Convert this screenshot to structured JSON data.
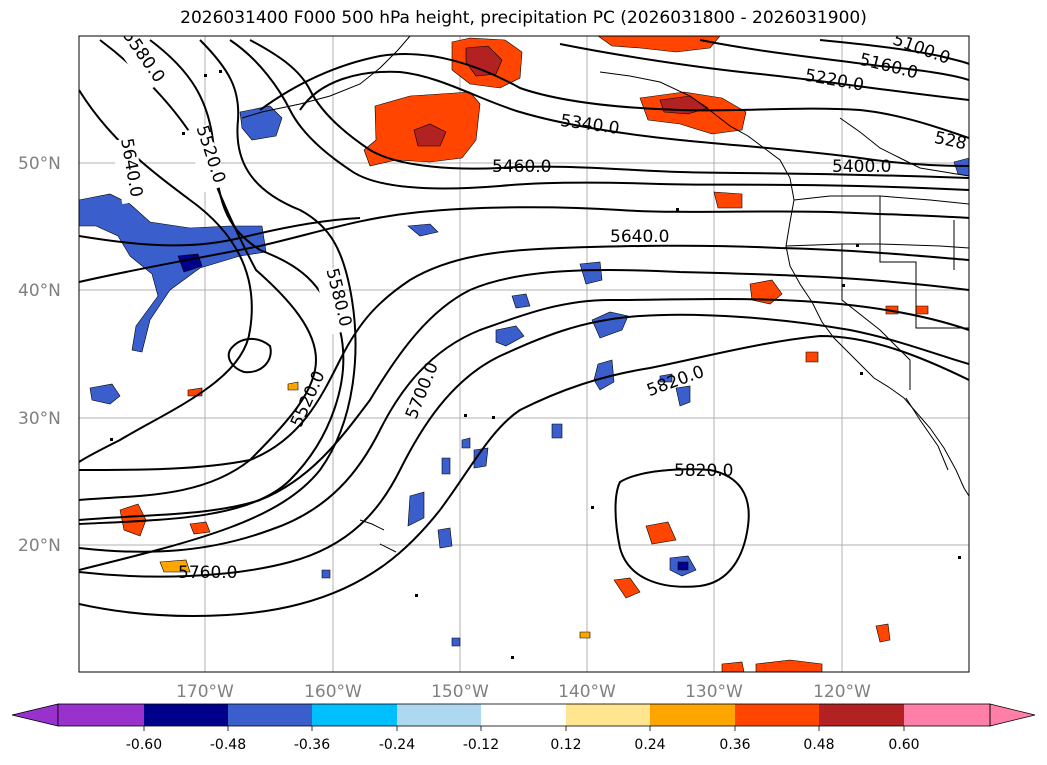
{
  "title": "2026031400 F000 500 hPa height, precipitation PC (2026031800 - 2026031900)",
  "latitude_labels": [
    "50°N",
    "40°N",
    "30°N",
    "20°N"
  ],
  "longitude_labels": [
    "170°W",
    "160°W",
    "150°W",
    "140°W",
    "130°W",
    "120°W"
  ],
  "contour_labels": [
    "5580.0",
    "5640.0",
    "5520.0",
    "5340.0",
    "5460.0",
    "5220.0",
    "5160.0",
    "5100.0",
    "528",
    "5400.0",
    "5640.0",
    "5580.0",
    "5520.0",
    "5700.0",
    "5820.0",
    "5820.0",
    "5760.0"
  ],
  "colorbar": {
    "ticks": [
      "-0.60",
      "-0.48",
      "-0.36",
      "-0.24",
      "-0.12",
      "0.12",
      "0.24",
      "0.36",
      "0.48",
      "0.60"
    ],
    "colors": [
      "#9932CC",
      "#00008B",
      "#3A5FCD",
      "#00BFFF",
      "#ADD8F0",
      "#FFFFFF",
      "#FFE58F",
      "#FFA500",
      "#FF4500",
      "#B22222",
      "#FF7FA8"
    ]
  }
}
